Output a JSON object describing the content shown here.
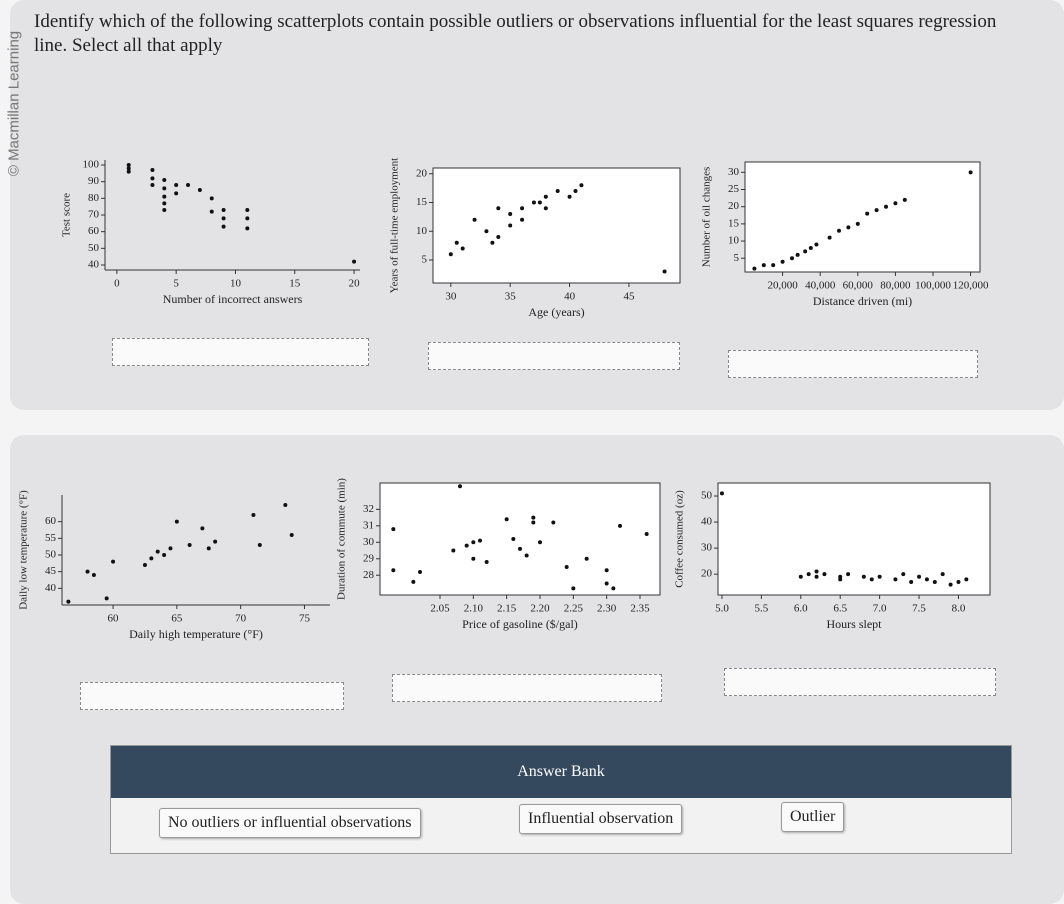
{
  "watermark": "© Macmillan Learning",
  "question": "Identify which of the following scatterplots contain possible outliers or observations influential for the least squares regression line. Select all that apply",
  "answer_bank": {
    "title": "Answer Bank",
    "options": [
      "No outliers or influential observations",
      "Influential observation",
      "Outlier"
    ]
  },
  "chart_data": [
    {
      "type": "scatter",
      "xlabel": "Number of incorrect answers",
      "ylabel": "Test score",
      "frame": false,
      "x": [
        1,
        1,
        1,
        3,
        3,
        3,
        4,
        4,
        4,
        4,
        4,
        5,
        5,
        6,
        7,
        8,
        8,
        9,
        9,
        9,
        11,
        11,
        11,
        20
      ],
      "y": [
        100,
        98,
        96,
        97,
        92,
        88,
        91,
        86,
        81,
        77,
        73,
        88,
        83,
        88,
        85,
        80,
        72,
        73,
        68,
        63,
        73,
        68,
        62,
        42
      ],
      "xlim": [
        -1,
        20.5
      ],
      "ylim": [
        37,
        103
      ],
      "xticks": [
        0,
        5,
        10,
        15,
        20
      ],
      "yticks": [
        40,
        50,
        60,
        70,
        80,
        90,
        100
      ]
    },
    {
      "type": "scatter",
      "xlabel": "Age (years)",
      "ylabel": "Years of full-time employment",
      "frame": true,
      "x": [
        30,
        30.5,
        31,
        32,
        33,
        33.5,
        34,
        34,
        35,
        35,
        36,
        36,
        37,
        37.5,
        38,
        38,
        39,
        40,
        40.5,
        41,
        48
      ],
      "y": [
        6,
        8,
        7,
        12,
        10,
        8,
        9,
        14,
        13,
        11,
        14,
        12,
        15,
        15,
        14,
        16,
        17,
        16,
        17,
        18,
        3
      ],
      "xlim": [
        28.5,
        49.3
      ],
      "ylim": [
        1,
        21
      ],
      "xticks": [
        30,
        35,
        40,
        45
      ],
      "yticks": [
        5,
        10,
        15,
        20
      ]
    },
    {
      "type": "scatter",
      "xlabel": "Distance driven (mi)",
      "ylabel": "Number of oil changes",
      "frame": true,
      "x": [
        5000,
        10000,
        15000,
        20000,
        25000,
        28000,
        32000,
        35000,
        38000,
        45000,
        50000,
        55000,
        60000,
        65000,
        70000,
        75000,
        80000,
        85000,
        120000
      ],
      "y": [
        2,
        3,
        3,
        4,
        5,
        6,
        7,
        8,
        9,
        11,
        13,
        14,
        15,
        18,
        19,
        20,
        21,
        22,
        30
      ],
      "xlim": [
        0,
        125000
      ],
      "ylim": [
        1,
        33
      ],
      "xticks": [
        {
          "value": 20000,
          "label": "20,000"
        },
        {
          "value": 40000,
          "label": "40,000"
        },
        {
          "value": 60000,
          "label": "60,000"
        },
        {
          "value": 80000,
          "label": "80,000"
        },
        {
          "value": 100000,
          "label": "100,000"
        },
        {
          "value": 120000,
          "label": "120,000"
        }
      ],
      "yticks": [
        5,
        10,
        15,
        20,
        25,
        30
      ]
    },
    {
      "type": "scatter",
      "xlabel": "Daily high temperature (°F)",
      "ylabel": "Daily low temperature (°F)",
      "frame": false,
      "x": [
        56.5,
        58,
        58.5,
        59.5,
        60,
        62.5,
        63,
        63.5,
        64,
        64.5,
        65,
        66,
        67,
        67.5,
        68,
        71,
        71.5,
        73.5,
        74
      ],
      "y": [
        36,
        45,
        44,
        37,
        48,
        47,
        49,
        51,
        50,
        52,
        60,
        53,
        58,
        52,
        54,
        62,
        53,
        65,
        56
      ],
      "xlim": [
        56,
        77
      ],
      "ylim": [
        35,
        68
      ],
      "xticks": [
        60,
        65,
        70,
        75
      ],
      "yticks": [
        40,
        45,
        50,
        55,
        60
      ]
    },
    {
      "type": "scatter",
      "xlabel": "Price of gasoline ($/gal)",
      "ylabel": "Duration of commute (min)",
      "frame": true,
      "x": [
        1.98,
        1.98,
        2.01,
        2.02,
        2.07,
        2.08,
        2.09,
        2.1,
        2.1,
        2.11,
        2.12,
        2.15,
        2.16,
        2.17,
        2.18,
        2.19,
        2.19,
        2.2,
        2.22,
        2.24,
        2.25,
        2.27,
        2.3,
        2.3,
        2.31,
        2.32,
        2.36
      ],
      "y": [
        30.8,
        28.3,
        27.6,
        28.2,
        29.5,
        33.4,
        29.8,
        30,
        29,
        30.1,
        28.8,
        31.4,
        30.2,
        29.6,
        29.2,
        31.5,
        31.2,
        30,
        31.2,
        28.5,
        27.2,
        29,
        28.3,
        27.5,
        27.2,
        31,
        30.5
      ],
      "xlim": [
        1.96,
        2.38
      ],
      "ylim": [
        26.8,
        33.6
      ],
      "xticks": [
        2.05,
        {
          "value": 2.1,
          "label": "2.10"
        },
        2.15,
        {
          "value": 2.2,
          "label": "2.20"
        },
        2.25,
        {
          "value": 2.3,
          "label": "2.30"
        },
        2.35
      ],
      "yticks": [
        28,
        29,
        30,
        31,
        32
      ]
    },
    {
      "type": "scatter",
      "xlabel": "Hours slept",
      "ylabel": "Coffee consumed (oz)",
      "frame": true,
      "x": [
        5,
        6,
        6.1,
        6.2,
        6.2,
        6.3,
        6.5,
        6.5,
        6.6,
        6.8,
        6.9,
        7,
        7.2,
        7.3,
        7.4,
        7.5,
        7.6,
        7.7,
        7.8,
        7.9,
        8,
        8.1
      ],
      "y": [
        51,
        19,
        20,
        21,
        19,
        20,
        19,
        18,
        20,
        19,
        18,
        19,
        18,
        20,
        17,
        19,
        18,
        17,
        20,
        16,
        17,
        18
      ],
      "xlim": [
        4.95,
        8.4
      ],
      "ylim": [
        12,
        55
      ],
      "xticks": [
        {
          "value": 5,
          "label": "5.0"
        },
        5.5,
        {
          "value": 6,
          "label": "6.0"
        },
        6.5,
        {
          "value": 7,
          "label": "7.0"
        },
        7.5,
        {
          "value": 8,
          "label": "8.0"
        }
      ],
      "yticks": [
        20,
        30,
        40,
        50
      ]
    }
  ]
}
